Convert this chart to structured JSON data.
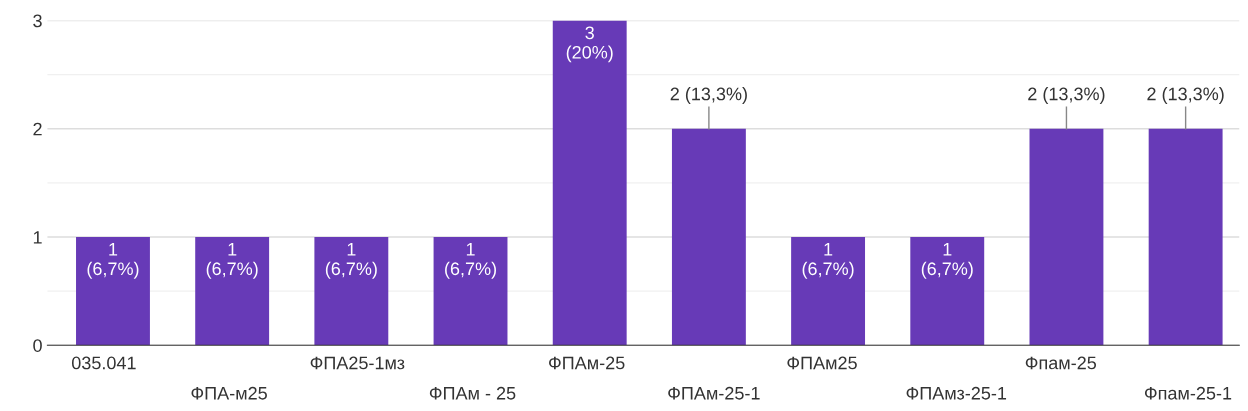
{
  "chart_data": {
    "type": "bar",
    "categories": [
      "035.041",
      "ФПА-м25",
      "ФПА25-1мз",
      "ФПАм - 25",
      "ФПАм-25",
      "ФПАм-25-1",
      "ФПАм25",
      "ФПАмз-25-1",
      "Фпам-25",
      "Фпам-25-1"
    ],
    "values": [
      1,
      1,
      1,
      1,
      3,
      2,
      1,
      1,
      2,
      2
    ],
    "value_labels": [
      "1\n(6,7%)",
      "1\n(6,7%)",
      "1\n(6,7%)",
      "1\n(6,7%)",
      "3\n(20%)",
      "2 (13,3%)",
      "1\n(6,7%)",
      "1\n(6,7%)",
      "2 (13,3%)",
      "2 (13,3%)"
    ],
    "color": "#673ab7",
    "ylim": [
      0,
      3
    ],
    "yticks": [
      0,
      1,
      2,
      3
    ],
    "grid": "y"
  }
}
